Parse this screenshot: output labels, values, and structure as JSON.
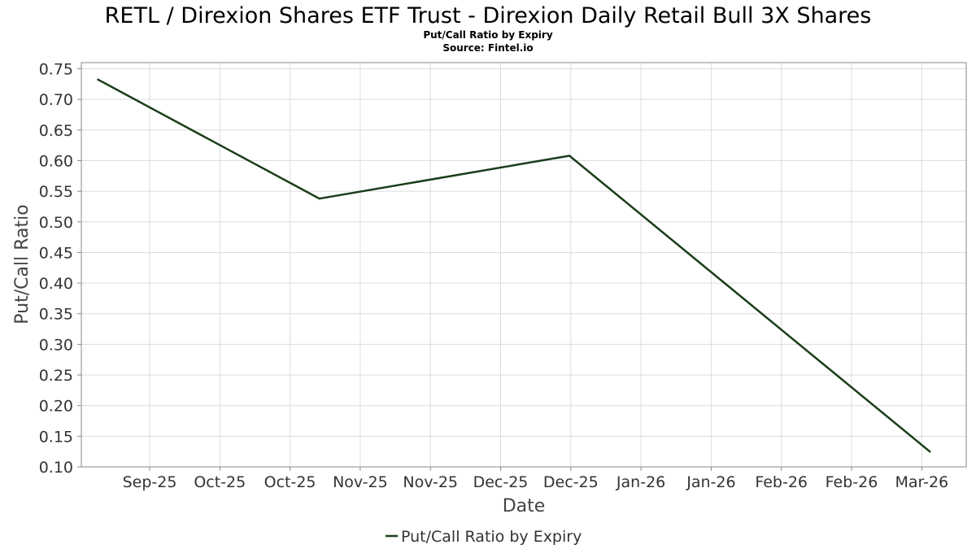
{
  "chart_data": {
    "type": "line",
    "title": "RETL / Direxion Shares ETF Trust - Direxion Daily Retail Bull 3X Shares",
    "subtitle": "Put/Call Ratio by Expiry",
    "source": "Source: Fintel.io",
    "xlabel": "Date",
    "ylabel": "Put/Call Ratio",
    "x_ticks": [
      "Sep-25",
      "Oct-25",
      "Oct-25",
      "Nov-25",
      "Nov-25",
      "Dec-25",
      "Dec-25",
      "Jan-26",
      "Jan-26",
      "Feb-26",
      "Feb-26",
      "Mar-26"
    ],
    "ylim": [
      0.1,
      0.76
    ],
    "y_ticks": [
      0.1,
      0.15,
      0.2,
      0.25,
      0.3,
      0.35,
      0.4,
      0.45,
      0.5,
      0.55,
      0.6,
      0.65,
      0.7,
      0.75
    ],
    "grid": true,
    "legend_position": "bottom-center",
    "series": [
      {
        "name": "Put/Call Ratio by Expiry",
        "color": "#1a3d1a",
        "x": [
          "2025-08-22",
          "2025-10-17",
          "2025-12-19",
          "2026-03-20"
        ],
        "values": [
          0.733,
          0.538,
          0.608,
          0.124
        ]
      }
    ]
  }
}
